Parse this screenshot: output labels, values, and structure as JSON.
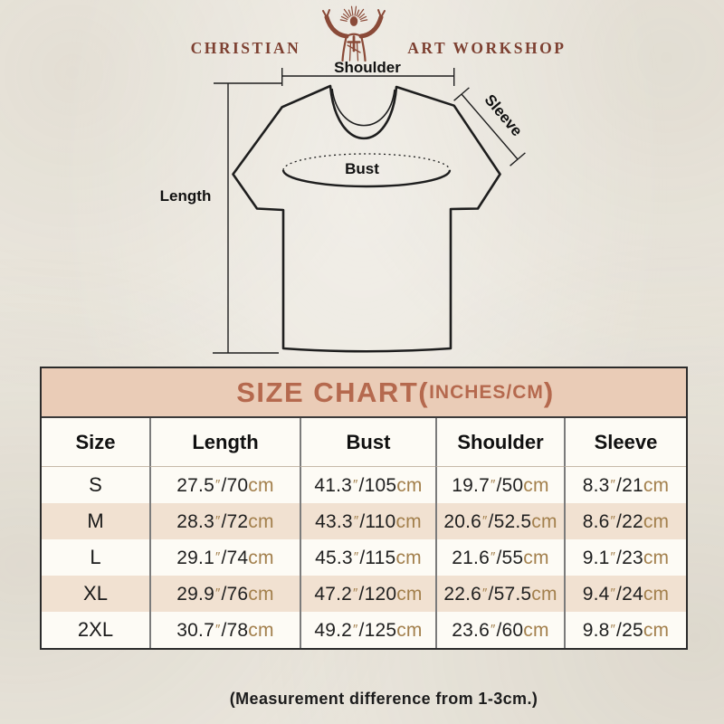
{
  "logo": {
    "left_text": "CHRISTIAN",
    "right_text": "ART WORKSHOP"
  },
  "diagram": {
    "shoulder_label": "Shoulder",
    "sleeve_label": "Sleeve",
    "bust_label": "Bust",
    "length_label": "Length"
  },
  "size_chart": {
    "title_main": "SIZE CHART(",
    "title_units": "INCHES/CM",
    "title_close": ")",
    "inch_mark": "″",
    "separator": "/",
    "cm_label": "cm"
  },
  "footer": {
    "note": "(Measurement difference from 1-3cm.)"
  },
  "colors": {
    "background": "#ebe7de",
    "logo_brick": "#7d4031",
    "title_band_bg": "#eaccb7",
    "title_text": "#b5694e",
    "table_border": "#2b2b2b",
    "column_divider": "#7b7b7b",
    "header_row_bg": "#f3eadf",
    "row_light": "#fdfbf5",
    "row_shaded": "#f1e1d1",
    "unit_brown": "#a3804d",
    "diagram_line": "#1e1e1e"
  },
  "chart_data": {
    "type": "table",
    "title": "SIZE CHART(INCHES/CM)",
    "units": "inches/cm",
    "columns": [
      "Size",
      "Length",
      "Bust",
      "Shoulder",
      "Sleeve"
    ],
    "rows": [
      {
        "size": "S",
        "measurements": [
          {
            "inches": 27.5,
            "cm": 70
          },
          {
            "inches": 41.3,
            "cm": 105
          },
          {
            "inches": 19.7,
            "cm": 50
          },
          {
            "inches": 8.3,
            "cm": 21
          }
        ]
      },
      {
        "size": "M",
        "measurements": [
          {
            "inches": 28.3,
            "cm": 72
          },
          {
            "inches": 43.3,
            "cm": 110
          },
          {
            "inches": 20.6,
            "cm": 52.5
          },
          {
            "inches": 8.6,
            "cm": 22
          }
        ]
      },
      {
        "size": "L",
        "measurements": [
          {
            "inches": 29.1,
            "cm": 74
          },
          {
            "inches": 45.3,
            "cm": 115
          },
          {
            "inches": 21.6,
            "cm": 55
          },
          {
            "inches": 9.1,
            "cm": 23
          }
        ]
      },
      {
        "size": "XL",
        "measurements": [
          {
            "inches": 29.9,
            "cm": 76
          },
          {
            "inches": 47.2,
            "cm": 120
          },
          {
            "inches": 22.6,
            "cm": 57.5
          },
          {
            "inches": 9.4,
            "cm": 24
          }
        ]
      },
      {
        "size": "2XL",
        "measurements": [
          {
            "inches": 30.7,
            "cm": 78
          },
          {
            "inches": 49.2,
            "cm": 125
          },
          {
            "inches": 23.6,
            "cm": 60
          },
          {
            "inches": 9.8,
            "cm": 25
          }
        ]
      }
    ],
    "footnote": "(Measurement difference from 1-3cm.)"
  }
}
